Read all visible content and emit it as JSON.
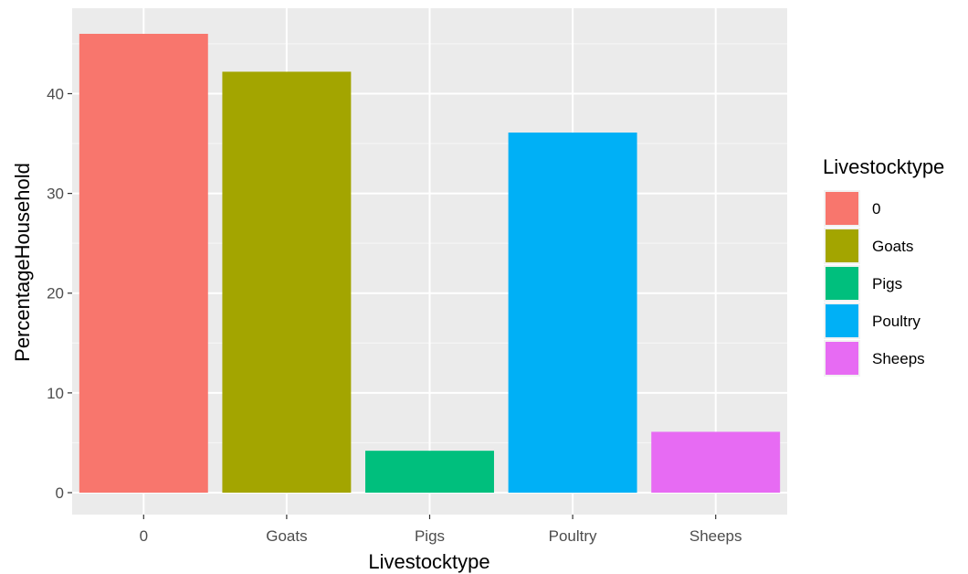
{
  "chart_data": {
    "type": "bar",
    "title": "",
    "xlabel": "Livestocktype",
    "ylabel": "PercentageHousehold",
    "categories": [
      "0",
      "Goats",
      "Pigs",
      "Poultry",
      "Sheeps"
    ],
    "values": [
      46,
      42.2,
      4.2,
      36.1,
      6.1
    ],
    "colors": [
      "#F8766D",
      "#A3A500",
      "#00BF7D",
      "#00B0F6",
      "#E76BF3"
    ],
    "ylim": [
      0,
      48
    ],
    "yticks": [
      0,
      10,
      20,
      30,
      40
    ],
    "grid": true,
    "background": "#EBEBEB",
    "legend": {
      "title": "Livestocktype",
      "placement": "right",
      "items": [
        "0",
        "Goats",
        "Pigs",
        "Poultry",
        "Sheeps"
      ]
    }
  }
}
